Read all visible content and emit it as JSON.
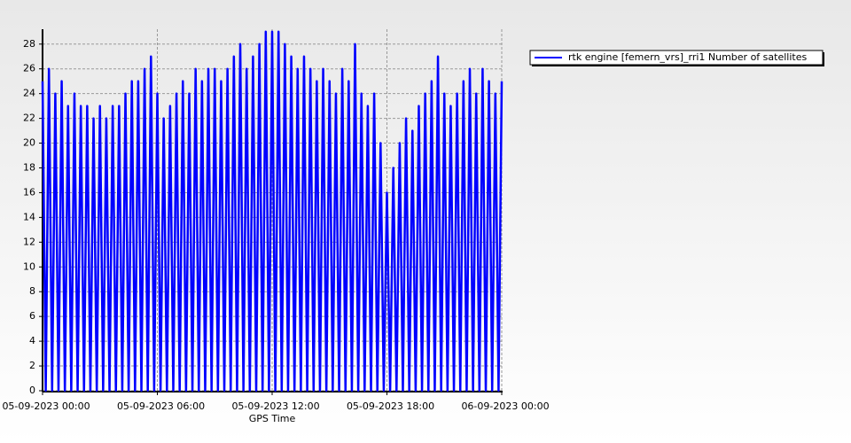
{
  "chart_data": {
    "type": "line",
    "x_label": "GPS Time",
    "x": [
      0,
      10,
      20,
      30,
      40,
      50,
      60,
      70,
      80,
      90,
      100,
      110,
      120,
      130,
      140,
      150,
      160,
      170,
      180,
      190,
      200,
      210,
      220,
      230,
      240,
      250,
      260,
      270,
      280,
      290,
      300,
      310,
      320,
      330,
      340,
      350,
      360,
      370,
      380,
      390,
      400,
      410,
      420,
      430,
      440,
      450,
      460,
      470,
      480,
      490,
      500,
      510,
      520,
      530,
      540,
      550,
      560,
      570,
      580,
      590,
      600,
      610,
      620,
      630,
      640,
      650,
      660,
      670,
      680,
      690,
      700,
      710,
      720,
      730,
      740,
      750,
      760,
      770,
      780,
      790,
      800,
      810,
      820,
      830,
      840,
      850,
      860,
      870,
      880,
      890,
      900,
      910,
      920,
      930,
      940,
      950,
      960,
      970,
      980,
      990,
      1000,
      1010,
      1020,
      1030,
      1040,
      1050,
      1060,
      1070,
      1080,
      1090,
      1100,
      1110,
      1120,
      1130,
      1140,
      1150,
      1160,
      1170,
      1180,
      1190,
      1200,
      1210,
      1220,
      1230,
      1240,
      1250,
      1260,
      1270,
      1280,
      1290,
      1300,
      1310,
      1320,
      1330,
      1340,
      1350,
      1360,
      1370,
      1380,
      1390,
      1400,
      1410,
      1420,
      1430,
      1440
    ],
    "series": [
      {
        "name": "rtk engine [femern_vrs]_rri1 Number of satellites",
        "color": "#0000ff",
        "values": [
          25,
          0,
          26,
          0,
          24,
          0,
          25,
          0,
          23,
          0,
          24,
          0,
          23,
          0,
          23,
          0,
          22,
          0,
          23,
          0,
          22,
          0,
          23,
          0,
          23,
          0,
          24,
          0,
          25,
          0,
          25,
          0,
          26,
          0,
          27,
          0,
          24,
          0,
          22,
          0,
          23,
          0,
          24,
          0,
          25,
          0,
          24,
          0,
          26,
          0,
          25,
          0,
          26,
          0,
          26,
          0,
          25,
          0,
          26,
          0,
          27,
          0,
          28,
          0,
          26,
          0,
          27,
          0,
          28,
          0,
          29,
          0,
          29,
          0,
          29,
          0,
          28,
          0,
          27,
          0,
          26,
          0,
          27,
          0,
          26,
          0,
          25,
          0,
          26,
          0,
          25,
          0,
          24,
          0,
          26,
          0,
          25,
          0,
          28,
          0,
          24,
          0,
          23,
          0,
          24,
          0,
          20,
          0,
          16,
          0,
          18,
          0,
          20,
          0,
          22,
          0,
          21,
          0,
          23,
          0,
          24,
          0,
          25,
          0,
          27,
          0,
          24,
          0,
          23,
          0,
          24,
          0,
          25,
          0,
          26,
          0,
          24,
          0,
          26,
          0,
          25,
          0,
          24,
          0,
          25
        ]
      }
    ],
    "xlim": [
      0,
      1440
    ],
    "xticks": [
      {
        "value": 0,
        "label": "05-09-2023 00:00"
      },
      {
        "value": 360,
        "label": "05-09-2023 06:00"
      },
      {
        "value": 720,
        "label": "05-09-2023 12:00"
      },
      {
        "value": 1080,
        "label": "05-09-2023 18:00"
      },
      {
        "value": 1440,
        "label": "06-09-2023 00:00"
      }
    ],
    "ylim": [
      0,
      29.2
    ],
    "yticks": [
      0,
      2,
      4,
      6,
      8,
      10,
      12,
      14,
      16,
      18,
      20,
      22,
      24,
      26,
      28
    ],
    "grid": true,
    "legend": "top-right"
  }
}
